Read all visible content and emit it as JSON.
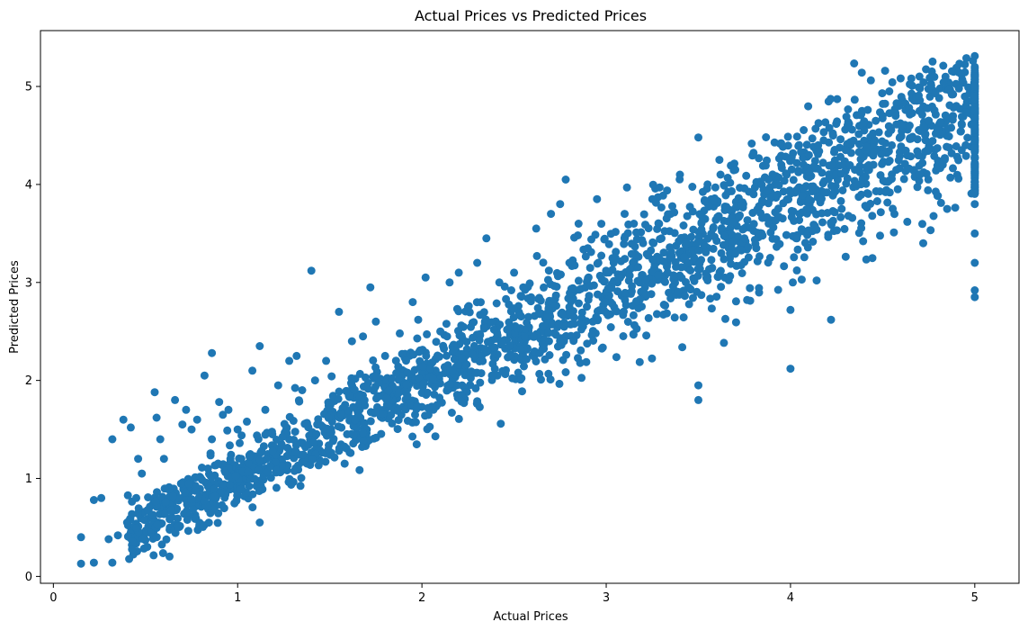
{
  "chart_data": {
    "type": "scatter",
    "title": "Actual Prices vs Predicted Prices",
    "xlabel": "Actual Prices",
    "ylabel": "Predicted Prices",
    "xlim": [
      -0.07,
      5.24
    ],
    "ylim": [
      -0.07,
      5.57
    ],
    "xticks": [
      0,
      1,
      2,
      3,
      4,
      5
    ],
    "yticks": [
      0,
      1,
      2,
      3,
      4,
      5
    ],
    "grid": false,
    "legend": "none",
    "marker_color": "#1f77b4",
    "series": [
      {
        "x": [
          0.15,
          0.15,
          0.22,
          0.22,
          0.26,
          0.3,
          0.32,
          0.32,
          0.35,
          0.38,
          0.4,
          0.42,
          0.45,
          0.46,
          0.48,
          0.55,
          0.56,
          0.58,
          0.6,
          0.66,
          0.7,
          0.72,
          0.75,
          0.78,
          0.82,
          0.86,
          0.86,
          0.9,
          0.92,
          0.95,
          1.0,
          1.02,
          1.05,
          1.08,
          1.12,
          1.12,
          1.15,
          1.22,
          1.28,
          1.32,
          1.35,
          1.4,
          1.42,
          1.48,
          1.55,
          1.62,
          1.68,
          1.72,
          1.75,
          1.8,
          1.88,
          1.95,
          1.98,
          2.02,
          2.1,
          2.15,
          2.2,
          2.25,
          2.3,
          2.35,
          2.38,
          2.42,
          2.5,
          2.55,
          2.62,
          2.7,
          2.75,
          2.78,
          2.8,
          2.85,
          2.9,
          2.95,
          3.0,
          3.05,
          3.1,
          3.15,
          3.2,
          3.25,
          3.3,
          3.35,
          3.4,
          3.45,
          3.5,
          3.5,
          3.5,
          3.55,
          3.58,
          3.62,
          3.7,
          3.75,
          3.8,
          3.88,
          3.95,
          3.98,
          4.0,
          4.0,
          4.05,
          4.1,
          4.15,
          4.18,
          4.22,
          4.3,
          4.35,
          4.4,
          4.45,
          4.5,
          4.55,
          4.6,
          4.7,
          4.72,
          4.75,
          4.8,
          4.85,
          4.9,
          4.95,
          5.0,
          5.0,
          5.0,
          5.0,
          5.0,
          5.0,
          5.0,
          5.0,
          5.0,
          5.0,
          5.0,
          5.0,
          5.0,
          5.0,
          5.0
        ],
        "y": [
          0.13,
          0.4,
          0.14,
          0.78,
          0.8,
          0.38,
          0.14,
          1.4,
          0.42,
          1.6,
          0.55,
          1.52,
          0.8,
          1.2,
          1.05,
          1.88,
          1.62,
          1.4,
          1.2,
          1.8,
          1.55,
          1.7,
          1.5,
          1.6,
          2.05,
          2.28,
          1.4,
          1.78,
          1.65,
          1.7,
          1.5,
          1.2,
          1.58,
          2.1,
          2.35,
          0.55,
          1.7,
          1.95,
          2.2,
          2.25,
          1.9,
          3.12,
          2.0,
          2.2,
          2.7,
          2.4,
          2.45,
          2.95,
          2.6,
          2.25,
          2.48,
          2.8,
          2.62,
          3.05,
          2.5,
          3.0,
          3.1,
          2.75,
          3.2,
          3.45,
          2.05,
          3.0,
          3.1,
          2.95,
          3.55,
          3.7,
          3.8,
          4.05,
          3.2,
          3.6,
          3.35,
          3.85,
          3.1,
          3.25,
          3.7,
          3.6,
          3.4,
          3.85,
          3.45,
          3.7,
          4.1,
          3.2,
          1.8,
          1.95,
          4.48,
          4.0,
          3.55,
          4.1,
          4.15,
          3.45,
          3.9,
          4.05,
          4.2,
          4.1,
          2.12,
          2.72,
          3.7,
          4.3,
          4.4,
          4.45,
          2.62,
          4.35,
          4.15,
          4.55,
          4.2,
          4.7,
          4.4,
          4.6,
          4.75,
          3.4,
          4.65,
          4.55,
          3.75,
          4.8,
          4.4,
          2.85,
          2.92,
          3.2,
          3.5,
          3.8,
          4.0,
          4.2,
          4.45,
          4.6,
          4.75,
          4.9,
          5.0,
          5.1,
          5.2,
          5.31
        ]
      }
    ]
  }
}
